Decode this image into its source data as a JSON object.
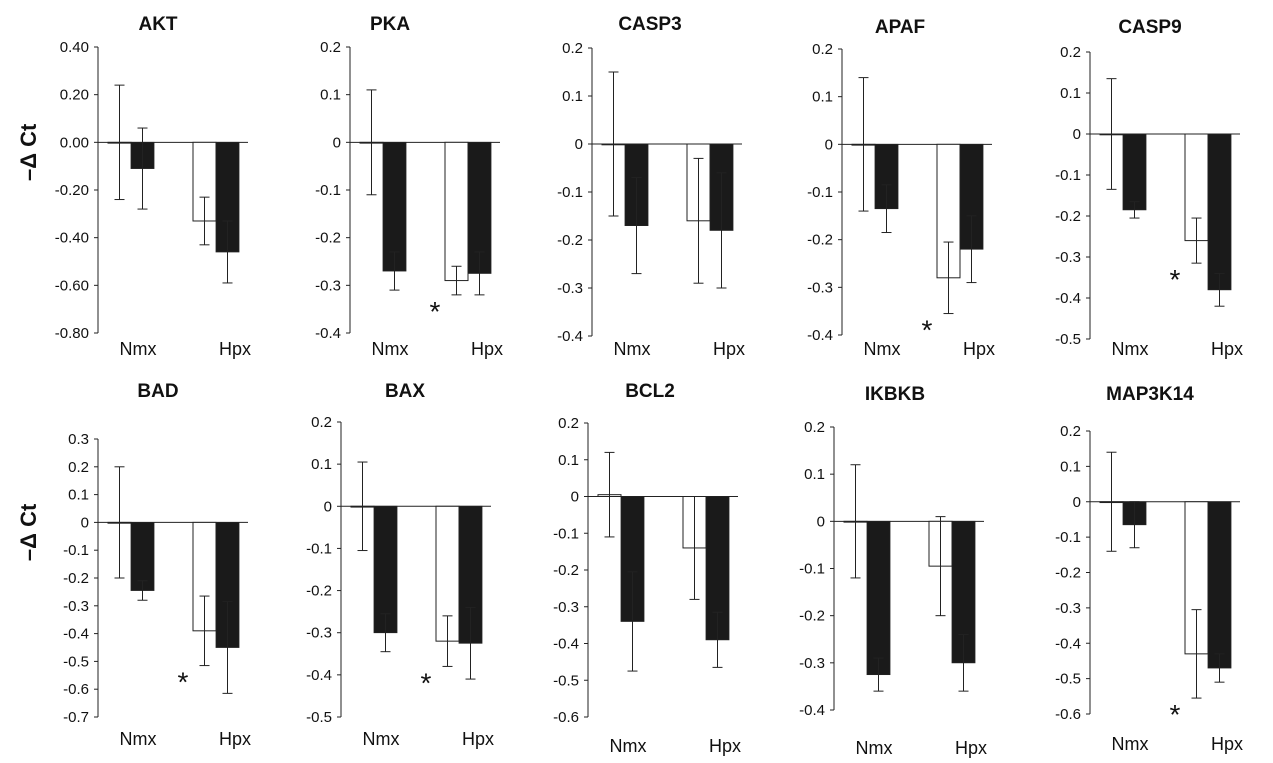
{
  "figure": {
    "y_axis_label": "–Δ Ct",
    "significance_marker": "*",
    "colors": {
      "white_bar": "#ffffff",
      "black_bar": "#1a1a1a",
      "axis": "#222222",
      "text": "#111111"
    }
  },
  "chart_data": [
    {
      "type": "bar",
      "title": "AKT",
      "categories": [
        "Nmx",
        "Hpx"
      ],
      "ylim": [
        -0.8,
        0.4
      ],
      "yticks": [
        "-0.80",
        "-0.60",
        "-0.40",
        "-0.20",
        "0.00",
        "0.20",
        "0.40"
      ],
      "show_ylabel": true,
      "series": [
        {
          "fill": "white",
          "values": [
            0.0,
            -0.33
          ],
          "errors": [
            0.24,
            0.1
          ]
        },
        {
          "fill": "black",
          "values": [
            -0.11,
            -0.46
          ],
          "errors": [
            0.17,
            0.13
          ]
        }
      ],
      "significant": []
    },
    {
      "type": "bar",
      "title": "PKA",
      "categories": [
        "Nmx",
        "Hpx"
      ],
      "ylim": [
        -0.4,
        0.2
      ],
      "yticks": [
        "-0.4",
        "-0.3",
        "-0.2",
        "-0.1",
        "0",
        "0.1",
        "0.2"
      ],
      "series": [
        {
          "fill": "white",
          "values": [
            0.0,
            -0.29
          ],
          "errors": [
            0.11,
            0.03
          ]
        },
        {
          "fill": "black",
          "values": [
            -0.27,
            -0.275
          ],
          "errors": [
            0.04,
            0.045
          ]
        }
      ],
      "significant": [
        "Hpx"
      ]
    },
    {
      "type": "bar",
      "title": "CASP3",
      "categories": [
        "Nmx",
        "Hpx"
      ],
      "ylim": [
        -0.4,
        0.2
      ],
      "yticks": [
        "-0.4",
        "-0.3",
        "-0.2",
        "-0.1",
        "0",
        "0.1",
        "0.2"
      ],
      "series": [
        {
          "fill": "white",
          "values": [
            0.0,
            -0.16
          ],
          "errors": [
            0.15,
            0.13
          ]
        },
        {
          "fill": "black",
          "values": [
            -0.17,
            -0.18
          ],
          "errors": [
            0.1,
            0.12
          ]
        }
      ],
      "significant": []
    },
    {
      "type": "bar",
      "title": "APAF",
      "categories": [
        "Nmx",
        "Hpx"
      ],
      "ylim": [
        -0.4,
        0.2
      ],
      "yticks": [
        "-0.4",
        "-0.3",
        "-0.2",
        "-0.1",
        "0",
        "0.1",
        "0.2"
      ],
      "series": [
        {
          "fill": "white",
          "values": [
            0.0,
            -0.28
          ],
          "errors": [
            0.14,
            0.075
          ]
        },
        {
          "fill": "black",
          "values": [
            -0.135,
            -0.22
          ],
          "errors": [
            0.05,
            0.07
          ]
        }
      ],
      "significant": [
        "Hpx"
      ]
    },
    {
      "type": "bar",
      "title": "CASP9",
      "categories": [
        "Nmx",
        "Hpx"
      ],
      "ylim": [
        -0.5,
        0.2
      ],
      "yticks": [
        "-0.5",
        "-0.4",
        "-0.3",
        "-0.2",
        "-0.1",
        "0",
        "0.1",
        "0.2"
      ],
      "series": [
        {
          "fill": "white",
          "values": [
            0.0,
            -0.26
          ],
          "errors": [
            0.135,
            0.055
          ]
        },
        {
          "fill": "black",
          "values": [
            -0.185,
            -0.38
          ],
          "errors": [
            0.02,
            0.04
          ]
        }
      ],
      "significant": [
        "Hpx"
      ]
    },
    {
      "type": "bar",
      "title": "BAD",
      "categories": [
        "Nmx",
        "Hpx"
      ],
      "ylim": [
        -0.7,
        0.3
      ],
      "yticks": [
        "-0.7",
        "-0.6",
        "-0.5",
        "-0.4",
        "-0.3",
        "-0.2",
        "-0.1",
        "0",
        "0.1",
        "0.2",
        "0.3"
      ],
      "show_ylabel": true,
      "series": [
        {
          "fill": "white",
          "values": [
            0.0,
            -0.39
          ],
          "errors": [
            0.2,
            0.125
          ]
        },
        {
          "fill": "black",
          "values": [
            -0.245,
            -0.45
          ],
          "errors": [
            0.035,
            0.165
          ]
        }
      ],
      "significant": [
        "Hpx"
      ]
    },
    {
      "type": "bar",
      "title": "BAX",
      "categories": [
        "Nmx",
        "Hpx"
      ],
      "ylim": [
        -0.5,
        0.2
      ],
      "yticks": [
        "-0.5",
        "-0.4",
        "-0.3",
        "-0.2",
        "-0.1",
        "0",
        "0.1",
        "0.2"
      ],
      "series": [
        {
          "fill": "white",
          "values": [
            0.0,
            -0.32
          ],
          "errors": [
            0.105,
            0.06
          ]
        },
        {
          "fill": "black",
          "values": [
            -0.3,
            -0.325
          ],
          "errors": [
            0.045,
            0.085
          ]
        }
      ],
      "significant": [
        "Hpx"
      ]
    },
    {
      "type": "bar",
      "title": "BCL2",
      "categories": [
        "Nmx",
        "Hpx"
      ],
      "ylim": [
        -0.6,
        0.2
      ],
      "yticks": [
        "-0.6",
        "-0.5",
        "-0.4",
        "-0.3",
        "-0.2",
        "-0.1",
        "0",
        "0.1",
        "0.2"
      ],
      "series": [
        {
          "fill": "white",
          "values": [
            0.005,
            -0.14
          ],
          "errors": [
            0.115,
            0.14
          ]
        },
        {
          "fill": "black",
          "values": [
            -0.34,
            -0.39
          ],
          "errors": [
            0.135,
            0.075
          ]
        }
      ],
      "significant": []
    },
    {
      "type": "bar",
      "title": "IKBKB",
      "categories": [
        "Nmx",
        "Hpx"
      ],
      "ylim": [
        -0.4,
        0.2
      ],
      "yticks": [
        "-0.4",
        "-0.3",
        "-0.2",
        "-0.1",
        "0",
        "0.1",
        "0.2"
      ],
      "series": [
        {
          "fill": "white",
          "values": [
            0.0,
            -0.095
          ],
          "errors": [
            0.12,
            0.105
          ]
        },
        {
          "fill": "black",
          "values": [
            -0.325,
            -0.3
          ],
          "errors": [
            0.035,
            0.06
          ]
        }
      ],
      "significant": []
    },
    {
      "type": "bar",
      "title": "MAP3K14",
      "categories": [
        "Nmx",
        "Hpx"
      ],
      "ylim": [
        -0.6,
        0.2
      ],
      "yticks": [
        "-0.6",
        "-0.5",
        "-0.4",
        "-0.3",
        "-0.2",
        "-0.1",
        "0",
        "0.1",
        "0.2"
      ],
      "series": [
        {
          "fill": "white",
          "values": [
            0.0,
            -0.43
          ],
          "errors": [
            0.14,
            0.125
          ]
        },
        {
          "fill": "black",
          "values": [
            -0.065,
            -0.47
          ],
          "errors": [
            0.065,
            0.04
          ]
        }
      ],
      "significant": [
        "Hpx"
      ]
    }
  ]
}
